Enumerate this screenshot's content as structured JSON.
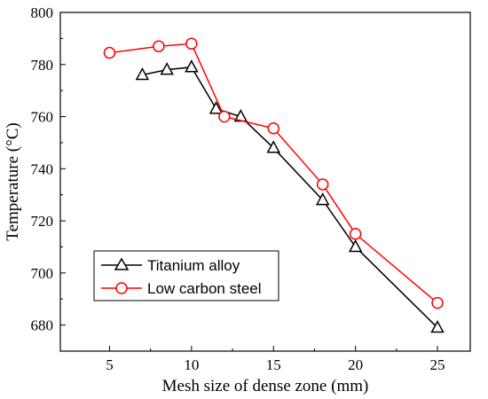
{
  "chart_data": {
    "type": "line",
    "xlabel": "Mesh size of dense zone (mm)",
    "ylabel": "Temperature (°C)",
    "xlim": [
      2,
      27
    ],
    "ylim": [
      670,
      800
    ],
    "xticks": [
      5,
      10,
      15,
      20,
      25
    ],
    "yticks": [
      680,
      700,
      720,
      740,
      760,
      780,
      800
    ],
    "grid": false,
    "legend_position": "bottom-left",
    "series": [
      {
        "name": "Titanium alloy",
        "color": "#000000",
        "marker": "triangle-open",
        "x": [
          7,
          8.5,
          10,
          11.5,
          13,
          15,
          18,
          20,
          25
        ],
        "y": [
          776,
          778,
          779,
          763,
          760,
          748,
          728,
          710,
          679
        ]
      },
      {
        "name": "Low carbon steel",
        "color": "#ff0000",
        "marker": "circle-open",
        "x": [
          5,
          8,
          10,
          12,
          15,
          18,
          20,
          25
        ],
        "y": [
          784.5,
          787,
          788,
          760,
          755.5,
          734,
          715,
          688.5
        ]
      }
    ]
  }
}
